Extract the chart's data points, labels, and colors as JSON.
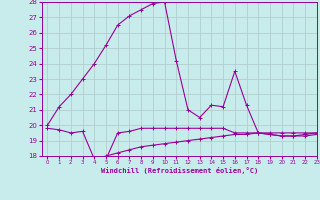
{
  "xlabel": "Windchill (Refroidissement éolien,°C)",
  "bg_color": "#c8ecec",
  "grid_color": "#b0c8c8",
  "line_color": "#990099",
  "x_values": [
    0,
    1,
    2,
    3,
    4,
    5,
    6,
    7,
    8,
    9,
    10,
    11,
    12,
    13,
    14,
    15,
    16,
    17,
    18,
    19,
    20,
    21,
    22,
    23
  ],
  "line1_y": [
    20.0,
    21.2,
    22.0,
    23.0,
    24.0,
    25.2,
    26.5,
    27.1,
    27.5,
    27.9,
    28.0,
    24.2,
    21.0,
    20.5,
    21.3,
    21.2,
    23.5,
    21.3,
    19.5,
    19.4,
    19.3,
    19.3,
    19.4,
    19.5
  ],
  "line2_y": [
    19.8,
    19.7,
    19.5,
    19.6,
    17.8,
    17.8,
    19.5,
    19.6,
    19.8,
    19.8,
    19.8,
    19.8,
    19.8,
    19.8,
    19.8,
    19.8,
    19.5,
    19.5,
    19.5,
    19.4,
    19.3,
    19.3,
    19.3,
    19.4
  ],
  "line3_y": [
    null,
    null,
    null,
    null,
    17.8,
    18.0,
    18.2,
    18.4,
    18.6,
    18.7,
    18.8,
    18.9,
    19.0,
    19.1,
    19.2,
    19.3,
    19.4,
    19.4,
    19.5,
    19.5,
    19.5,
    19.5,
    19.5,
    19.5
  ],
  "ylim": [
    18,
    28
  ],
  "xlim": [
    -0.5,
    23
  ],
  "yticks": [
    18,
    19,
    20,
    21,
    22,
    23,
    24,
    25,
    26,
    27,
    28
  ],
  "xticks": [
    0,
    1,
    2,
    3,
    4,
    5,
    6,
    7,
    8,
    9,
    10,
    11,
    12,
    13,
    14,
    15,
    16,
    17,
    18,
    19,
    20,
    21,
    22,
    23
  ]
}
